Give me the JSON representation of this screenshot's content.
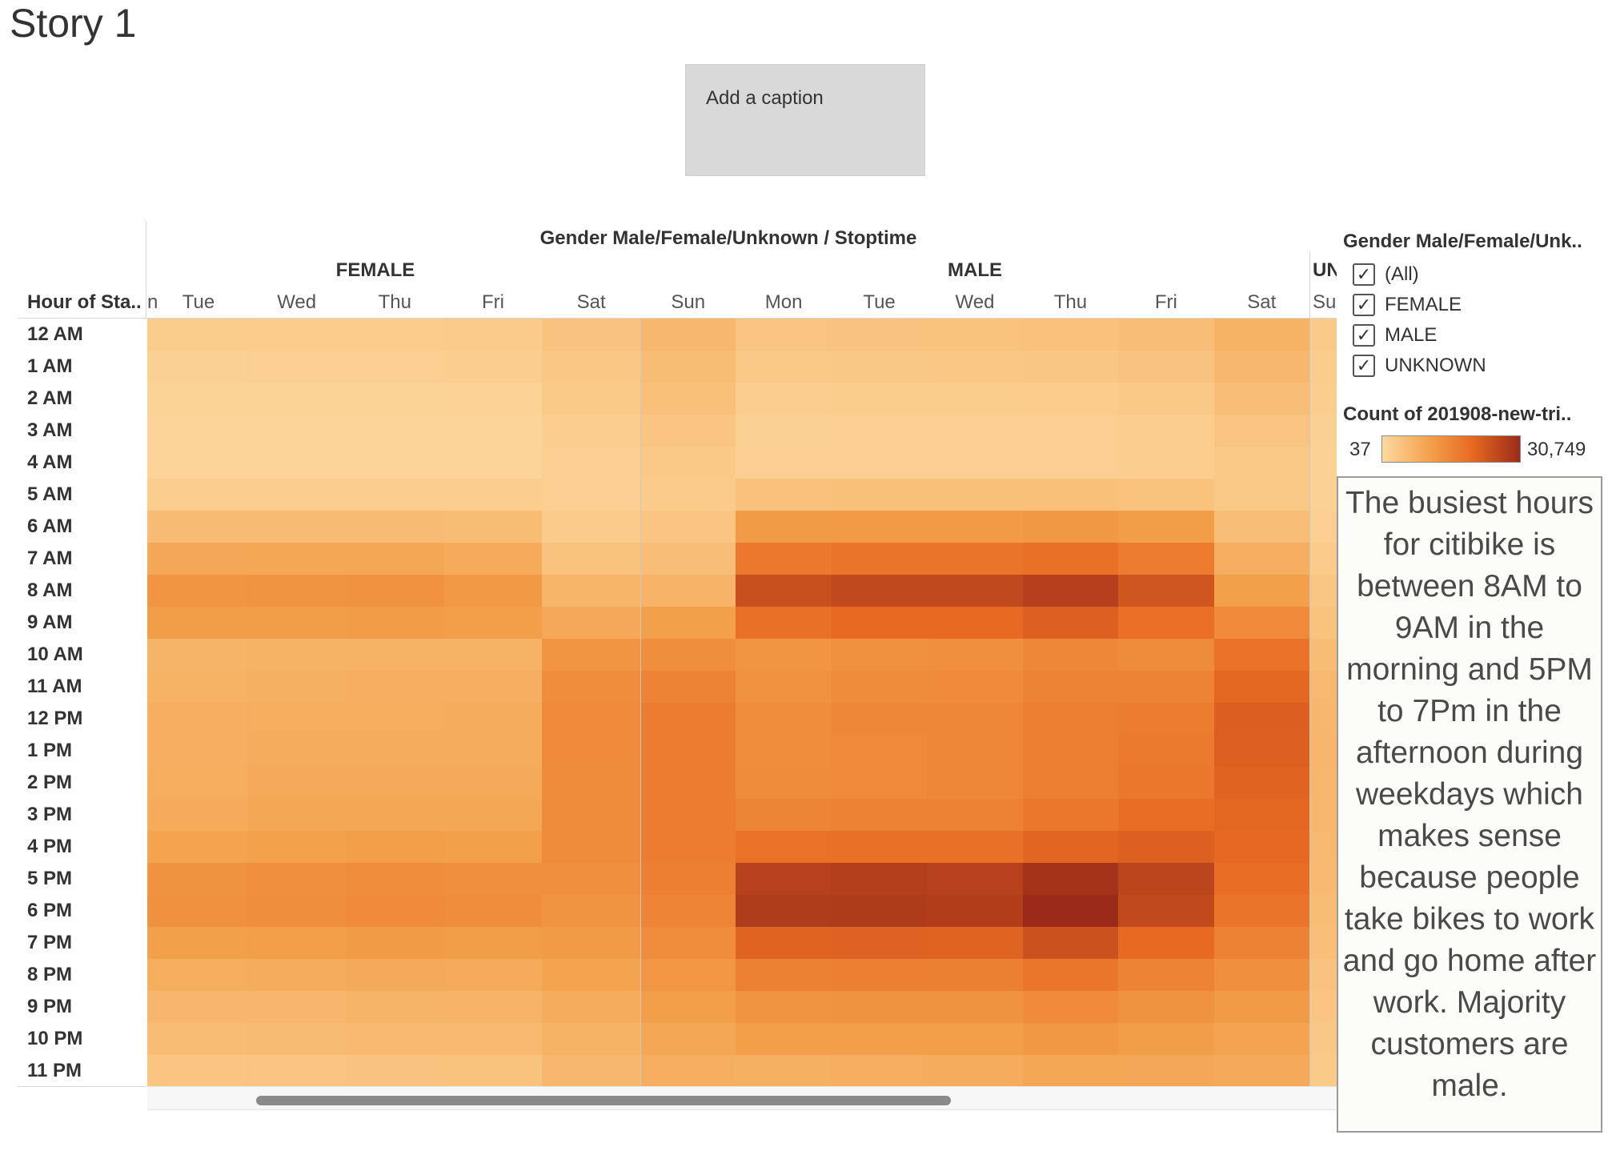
{
  "story": {
    "title": "Story 1",
    "caption_placeholder": "Add a caption"
  },
  "viz": {
    "column_title": "Gender Male/Female/Unknown  /  Stoptime",
    "row_header": "Hour of Sta..",
    "genders": [
      {
        "label": "FEMALE",
        "days": [
          "n",
          "Tue",
          "Wed",
          "Thu",
          "Fri",
          "Sat"
        ]
      },
      {
        "label": "MALE",
        "days": [
          "Sun",
          "Mon",
          "Tue",
          "Wed",
          "Thu",
          "Fri",
          "Sat"
        ]
      },
      {
        "label": "UN",
        "days": [
          "Su"
        ]
      }
    ],
    "hours": [
      "12 AM",
      "1 AM",
      "2 AM",
      "3 AM",
      "4 AM",
      "5 AM",
      "6 AM",
      "7 AM",
      "8 AM",
      "9 AM",
      "10 AM",
      "11 AM",
      "12 PM",
      "1 PM",
      "2 PM",
      "3 PM",
      "4 PM",
      "5 PM",
      "6 PM",
      "7 PM",
      "8 PM",
      "9 PM",
      "10 PM",
      "11 PM"
    ]
  },
  "chart_data": {
    "type": "heatmap",
    "title": "",
    "xlabel": "Gender Male/Female/Unknown  /  Stoptime",
    "ylabel": "Hour of Sta..",
    "color_range": [
      37,
      30749
    ],
    "columns": [
      "FEMALE Mon",
      "FEMALE Tue",
      "FEMALE Wed",
      "FEMALE Thu",
      "FEMALE Fri",
      "FEMALE Sat",
      "MALE Sun",
      "MALE Mon",
      "MALE Tue",
      "MALE Wed",
      "MALE Thu",
      "MALE Fri",
      "MALE Sat",
      "UNKNOWN Sun"
    ],
    "rows": [
      "12 AM",
      "1 AM",
      "2 AM",
      "3 AM",
      "4 AM",
      "5 AM",
      "6 AM",
      "7 AM",
      "8 AM",
      "9 AM",
      "10 AM",
      "11 AM",
      "12 PM",
      "1 PM",
      "2 PM",
      "3 PM",
      "4 PM",
      "5 PM",
      "6 PM",
      "7 PM",
      "8 PM",
      "9 PM",
      "10 PM",
      "11 PM"
    ],
    "values": [
      [
        1200,
        1200,
        1300,
        1300,
        1400,
        2400,
        4100,
        2300,
        2500,
        2600,
        2700,
        3200,
        4900,
        1500
      ],
      [
        800,
        800,
        900,
        900,
        1000,
        1900,
        3300,
        1700,
        1800,
        1900,
        2000,
        2400,
        4000,
        1200
      ],
      [
        500,
        500,
        500,
        500,
        600,
        1500,
        2800,
        1100,
        1200,
        1200,
        1300,
        1600,
        3200,
        1000
      ],
      [
        400,
        400,
        400,
        400,
        400,
        1100,
        2100,
        800,
        900,
        900,
        900,
        1100,
        2300,
        800
      ],
      [
        400,
        400,
        400,
        400,
        400,
        900,
        1600,
        900,
        900,
        900,
        900,
        1000,
        1600,
        700
      ],
      [
        1100,
        1100,
        1100,
        1100,
        1100,
        900,
        1400,
        2700,
        2800,
        2800,
        2800,
        2600,
        1700,
        700
      ],
      [
        3400,
        3500,
        3500,
        3500,
        3300,
        1400,
        2100,
        8700,
        8900,
        8900,
        9200,
        8300,
        3200,
        900
      ],
      [
        6200,
        6400,
        6600,
        6700,
        6000,
        2600,
        3100,
        15500,
        16200,
        16300,
        17100,
        14600,
        5500,
        1400
      ],
      [
        9600,
        9800,
        10000,
        10500,
        9100,
        4400,
        4500,
        23500,
        24600,
        24700,
        26500,
        22300,
        7900,
        2000
      ],
      [
        8300,
        8400,
        8300,
        8600,
        8000,
        6300,
        7800,
        17200,
        18700,
        18500,
        20400,
        17300,
        11900,
        2600
      ],
      [
        4600,
        4600,
        4900,
        4900,
        4900,
        9800,
        11200,
        9800,
        10700,
        10900,
        12300,
        11500,
        16700,
        3300
      ],
      [
        4800,
        4900,
        5200,
        5300,
        5300,
        11300,
        13300,
        10500,
        11500,
        11700,
        13300,
        13100,
        19300,
        3800
      ],
      [
        5100,
        5300,
        5600,
        5600,
        5700,
        12000,
        14700,
        11400,
        12300,
        12600,
        14300,
        14700,
        20500,
        4100
      ],
      [
        5200,
        5300,
        5800,
        5900,
        5800,
        11900,
        14700,
        11400,
        12000,
        12500,
        14300,
        15200,
        20300,
        4200
      ],
      [
        5300,
        5600,
        6100,
        6100,
        6100,
        11600,
        14700,
        11500,
        12000,
        12500,
        14400,
        15800,
        19900,
        4100
      ],
      [
        5800,
        6000,
        6500,
        6700,
        6700,
        11600,
        14800,
        13000,
        13500,
        13600,
        15800,
        17800,
        19300,
        4000
      ],
      [
        6900,
        7300,
        7700,
        8100,
        7900,
        11500,
        14700,
        16800,
        17000,
        17000,
        19500,
        20300,
        18900,
        3900
      ],
      [
        9700,
        10300,
        11000,
        11400,
        11000,
        10800,
        14100,
        26300,
        26600,
        26300,
        29100,
        25500,
        17900,
        3600
      ],
      [
        10100,
        10600,
        11200,
        11700,
        11300,
        10000,
        12900,
        27400,
        27600,
        27100,
        30749,
        24500,
        16400,
        3300
      ],
      [
        7500,
        7900,
        8200,
        8700,
        8300,
        8800,
        11300,
        19900,
        20100,
        19900,
        23000,
        18500,
        13500,
        2900
      ],
      [
        5300,
        5600,
        5800,
        6200,
        6000,
        7200,
        9500,
        13700,
        14100,
        14000,
        16000,
        13400,
        11000,
        2500
      ],
      [
        4100,
        4200,
        4300,
        4600,
        4500,
        5900,
        8000,
        10100,
        10300,
        10200,
        11700,
        10200,
        8800,
        2100
      ],
      [
        3300,
        3400,
        3500,
        3700,
        3700,
        4900,
        6700,
        8000,
        8200,
        8200,
        9300,
        8400,
        7100,
        1800
      ],
      [
        2100,
        2200,
        2300,
        2500,
        2600,
        4000,
        5500,
        5200,
        5500,
        5700,
        6500,
        6400,
        6200,
        1500
      ]
    ]
  },
  "filter_legend": {
    "title": "Gender Male/Female/Unk..",
    "items": [
      {
        "label": "(All)",
        "checked": true
      },
      {
        "label": "FEMALE",
        "checked": true
      },
      {
        "label": "MALE",
        "checked": true
      },
      {
        "label": "UNKNOWN",
        "checked": true
      }
    ],
    "check_glyph": "✓"
  },
  "color_legend": {
    "title": "Count of 201908-new-tri..",
    "min_label": "37",
    "max_label": "30,749",
    "colors": [
      "#fdd9a0",
      "#f3a04a",
      "#e86a22",
      "#9b2b18"
    ]
  },
  "annotation": {
    "text": "The busiest hours for citibike is between 8AM to 9AM in the morning and 5PM to 7Pm in the afternoon during weekdays which makes sense because people take bikes to work and go home after work. Majority customers are male."
  }
}
